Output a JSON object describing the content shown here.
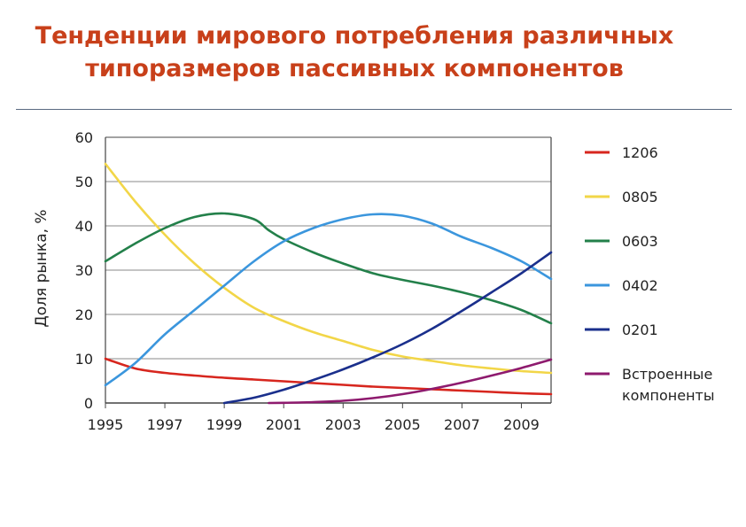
{
  "header": {
    "title_line1": "Тенденции мирового потребления различных",
    "title_line2": "типоразмеров пассивных компонентов"
  },
  "chart_data": {
    "type": "line",
    "ylabel": "Доля рынка, %",
    "xlim": [
      1995,
      2010
    ],
    "ylim": [
      0,
      60
    ],
    "x_ticks": [
      1995,
      1997,
      1999,
      2001,
      2003,
      2005,
      2007,
      2009
    ],
    "y_ticks": [
      0,
      10,
      20,
      30,
      40,
      50,
      60
    ],
    "grid": "horizontal",
    "legend_position": "right",
    "series": [
      {
        "name": "1206",
        "color": "#d7261e",
        "points": [
          [
            1995,
            10
          ],
          [
            1996,
            7.8
          ],
          [
            1997,
            6.8
          ],
          [
            1998,
            6.2
          ],
          [
            1999,
            5.7
          ],
          [
            2000,
            5.3
          ],
          [
            2001,
            4.9
          ],
          [
            2002,
            4.5
          ],
          [
            2003,
            4.1
          ],
          [
            2004,
            3.7
          ],
          [
            2005,
            3.4
          ],
          [
            2006,
            3.1
          ],
          [
            2007,
            2.8
          ],
          [
            2008,
            2.5
          ],
          [
            2009,
            2.2
          ],
          [
            2010,
            2.0
          ]
        ]
      },
      {
        "name": "0805",
        "color": "#f2d648",
        "points": [
          [
            1995,
            54
          ],
          [
            1996,
            45.5
          ],
          [
            1997,
            38
          ],
          [
            1998,
            31.5
          ],
          [
            1999,
            26
          ],
          [
            2000,
            21.5
          ],
          [
            2001,
            18.5
          ],
          [
            2002,
            16
          ],
          [
            2003,
            14
          ],
          [
            2004,
            12
          ],
          [
            2005,
            10.5
          ],
          [
            2006,
            9.5
          ],
          [
            2007,
            8.5
          ],
          [
            2008,
            7.8
          ],
          [
            2009,
            7.2
          ],
          [
            2010,
            6.8
          ]
        ]
      },
      {
        "name": "0603",
        "color": "#23804a",
        "points": [
          [
            1995,
            32
          ],
          [
            1996,
            36
          ],
          [
            1997,
            39.5
          ],
          [
            1998,
            42
          ],
          [
            1999,
            42.8
          ],
          [
            2000,
            41.5
          ],
          [
            2000.5,
            39
          ],
          [
            2001,
            37
          ],
          [
            2002,
            34
          ],
          [
            2003,
            31.5
          ],
          [
            2004,
            29.3
          ],
          [
            2005,
            27.8
          ],
          [
            2006,
            26.5
          ],
          [
            2007,
            25
          ],
          [
            2008,
            23.2
          ],
          [
            2009,
            21
          ],
          [
            2010,
            18
          ]
        ]
      },
      {
        "name": "0402",
        "color": "#3b96dd",
        "points": [
          [
            1995,
            4
          ],
          [
            1996,
            9
          ],
          [
            1997,
            15.5
          ],
          [
            1998,
            21
          ],
          [
            1999,
            26.5
          ],
          [
            2000,
            32
          ],
          [
            2001,
            36.5
          ],
          [
            2002,
            39.5
          ],
          [
            2003,
            41.5
          ],
          [
            2004,
            42.6
          ],
          [
            2005,
            42.3
          ],
          [
            2006,
            40.5
          ],
          [
            2007,
            37.5
          ],
          [
            2008,
            35
          ],
          [
            2009,
            32
          ],
          [
            2010,
            28
          ]
        ]
      },
      {
        "name": "0201",
        "color": "#1a2f8c",
        "points": [
          [
            1999,
            0
          ],
          [
            2000,
            1.2
          ],
          [
            2001,
            3
          ],
          [
            2002,
            5.2
          ],
          [
            2003,
            7.6
          ],
          [
            2004,
            10.3
          ],
          [
            2005,
            13.3
          ],
          [
            2006,
            16.8
          ],
          [
            2007,
            20.8
          ],
          [
            2008,
            25
          ],
          [
            2009,
            29.3
          ],
          [
            2010,
            34
          ]
        ]
      },
      {
        "name": "Встроенные компоненты",
        "name_lines": [
          "Встроенные",
          "компоненты"
        ],
        "color": "#8e1a6e",
        "points": [
          [
            2000.5,
            0
          ],
          [
            2001,
            0.05
          ],
          [
            2002,
            0.2
          ],
          [
            2003,
            0.5
          ],
          [
            2004,
            1.1
          ],
          [
            2005,
            2.0
          ],
          [
            2006,
            3.2
          ],
          [
            2007,
            4.6
          ],
          [
            2008,
            6.2
          ],
          [
            2009,
            7.9
          ],
          [
            2010,
            9.8
          ]
        ]
      }
    ]
  }
}
